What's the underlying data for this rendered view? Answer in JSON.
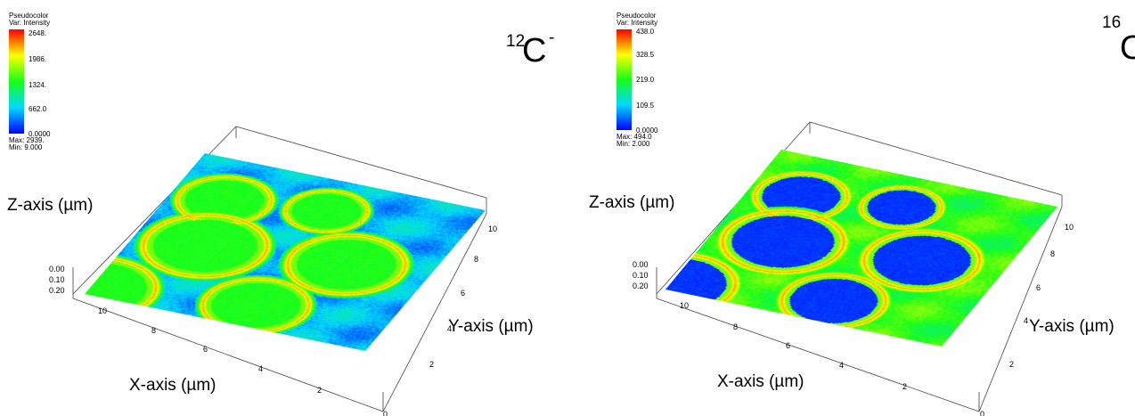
{
  "colors": {
    "colormap": [
      "#0000ff",
      "#00d9ff",
      "#16ff16",
      "#ffff00",
      "#ff0000"
    ],
    "box": "#333333"
  },
  "chart_data": [
    {
      "type": "heatmap",
      "projection": "3d-surface",
      "colormap": "jet",
      "legend": {
        "title": "Pseudocolor",
        "subtitle": "Var: Intensity",
        "ticks": [
          "2648.",
          "1986.",
          "1324.",
          "662.0",
          "0.0000"
        ],
        "max": "Max:  2939.",
        "min": "Min:  9.000",
        "range": [
          0,
          2648
        ]
      },
      "isotope": {
        "mass": "12",
        "element": "C",
        "charge": "-"
      },
      "xlabel": "X-axis (µm)",
      "ylabel": "Y-axis (µm)",
      "zlabel": "Z-axis (µm)",
      "x_ticks": [
        "10",
        "8",
        "6",
        "4",
        "2"
      ],
      "y_ticks": [
        "0",
        "2",
        "4",
        "6",
        "8",
        "10"
      ],
      "z_ticks": [
        "0.00",
        "0.10",
        "0.20"
      ],
      "background_level": 0.22,
      "features": [
        {
          "label": "crater",
          "cx": 0.18,
          "cy": 0.26,
          "r": 0.16,
          "rim": 0.85,
          "inside": 0.5
        },
        {
          "label": "crater",
          "cx": 0.52,
          "cy": 0.2,
          "r": 0.14,
          "rim": 0.85,
          "inside": 0.5
        },
        {
          "label": "crater",
          "cx": 0.24,
          "cy": 0.56,
          "r": 0.21,
          "rim": 0.85,
          "inside": 0.5
        },
        {
          "label": "crater",
          "cx": 0.72,
          "cy": 0.5,
          "r": 0.2,
          "rim": 0.85,
          "inside": 0.5
        },
        {
          "label": "crater",
          "cx": 0.55,
          "cy": 0.86,
          "r": 0.18,
          "rim": 0.85,
          "inside": 0.5
        },
        {
          "label": "crater",
          "cx": 0.02,
          "cy": 0.95,
          "r": 0.2,
          "rim": 0.85,
          "inside": 0.5
        }
      ]
    },
    {
      "type": "heatmap",
      "projection": "3d-surface",
      "colormap": "jet",
      "legend": {
        "title": "Pseudocolor",
        "subtitle": "Var: Intensity",
        "ticks": [
          "438.0",
          "328.5",
          "219.0",
          "109.5",
          "0.0000"
        ],
        "max": "Max:  494.0",
        "min": "Min:  2.000",
        "range": [
          0,
          438
        ]
      },
      "isotope": {
        "mass": "16",
        "element": "O",
        "charge": ""
      },
      "xlabel": "X-axis (µm)",
      "ylabel": "Y-axis (µm)",
      "zlabel": "Z-axis (µm)",
      "x_ticks": [
        "10",
        "8",
        "6",
        "4",
        "2"
      ],
      "y_ticks": [
        "0",
        "2",
        "4",
        "6",
        "8",
        "10"
      ],
      "z_ticks": [
        "0.00",
        "0.10",
        "0.20"
      ],
      "background_level": 0.52,
      "features": [
        {
          "label": "crater",
          "cx": 0.18,
          "cy": 0.26,
          "r": 0.16,
          "rim": 0.85,
          "inside": 0.06
        },
        {
          "label": "crater",
          "cx": 0.52,
          "cy": 0.2,
          "r": 0.14,
          "rim": 0.85,
          "inside": 0.06
        },
        {
          "label": "crater",
          "cx": 0.24,
          "cy": 0.56,
          "r": 0.21,
          "rim": 0.85,
          "inside": 0.06
        },
        {
          "label": "crater",
          "cx": 0.72,
          "cy": 0.5,
          "r": 0.2,
          "rim": 0.85,
          "inside": 0.06
        },
        {
          "label": "crater",
          "cx": 0.55,
          "cy": 0.86,
          "r": 0.18,
          "rim": 0.85,
          "inside": 0.06
        },
        {
          "label": "crater",
          "cx": 0.02,
          "cy": 0.95,
          "r": 0.2,
          "rim": 0.85,
          "inside": 0.06
        }
      ]
    }
  ]
}
